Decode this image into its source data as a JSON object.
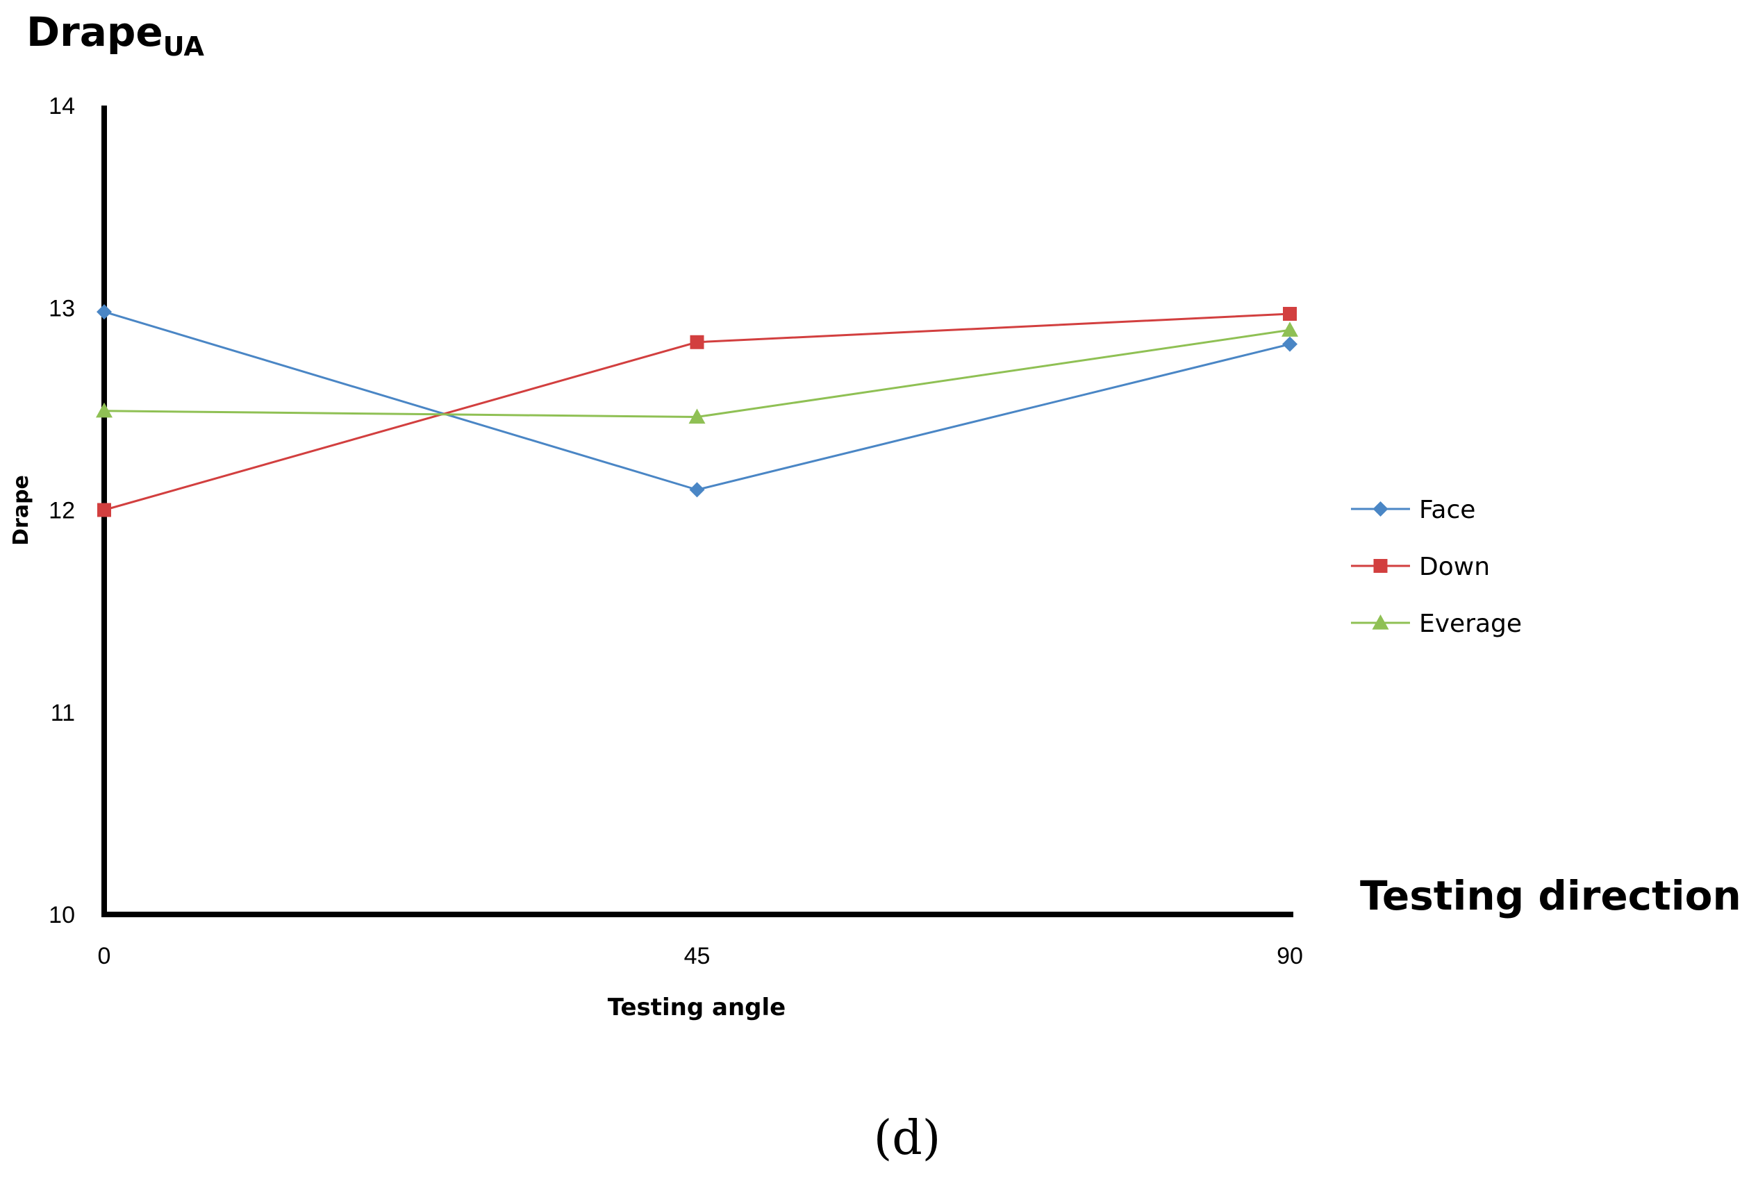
{
  "colors": {
    "face": "#4a86c5",
    "down": "#d23f3f",
    "average": "#8fc054",
    "axis": "#000000"
  },
  "chart_data": {
    "type": "line",
    "title": "Drape",
    "title_subscript": "UA",
    "xlabel": "Testing angle",
    "ylabel": "Drape",
    "x_direction_label": "Testing direction (°)",
    "categories": [
      "0",
      "45",
      "90"
    ],
    "x": [
      0,
      45,
      90
    ],
    "ylim": [
      10,
      14
    ],
    "yticks": [
      "10",
      "11",
      "12",
      "13",
      "14"
    ],
    "grid": false,
    "legend_position": "right",
    "series": [
      {
        "name": "Face",
        "values": [
          12.98,
          12.1,
          12.82
        ],
        "marker": "diamond",
        "color_key": "face"
      },
      {
        "name": "Down",
        "values": [
          12.0,
          12.83,
          12.97
        ],
        "marker": "square",
        "color_key": "down"
      },
      {
        "name": "Everage",
        "values": [
          12.49,
          12.46,
          12.89
        ],
        "marker": "triangle",
        "color_key": "average"
      }
    ]
  },
  "caption": "(d)"
}
